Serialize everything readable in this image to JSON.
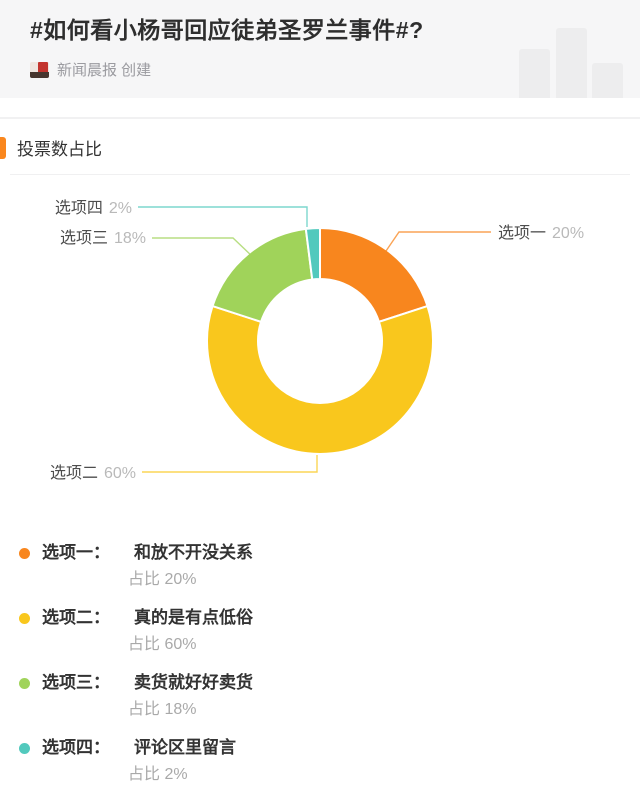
{
  "header": {
    "title": "#如何看小杨哥回应徒弟圣罗兰事件#?",
    "creator": "新闻晨报 创建"
  },
  "icons": {
    "creator_avatar": "newspaper-logo",
    "decorative": "bar-chart-watermark"
  },
  "section": {
    "title": "投票数占比",
    "accent_color": "#FA871E"
  },
  "chart_data": {
    "type": "pie",
    "subtype": "donut",
    "title": "投票数占比",
    "categories": [
      "选项一",
      "选项二",
      "选项三",
      "选项四"
    ],
    "values": [
      20,
      60,
      18,
      2
    ],
    "unit": "%",
    "colors": [
      "#F8861E",
      "#F9C71D",
      "#A0D35A",
      "#52C9BD"
    ],
    "slice_labels": [
      {
        "name": "选项一",
        "pct": "20%"
      },
      {
        "name": "选项二",
        "pct": "60%"
      },
      {
        "name": "选项三",
        "pct": "18%"
      },
      {
        "name": "选项四",
        "pct": "2%"
      }
    ],
    "layout": {
      "start_angle_deg": 0,
      "direction": "clockwise-from-top",
      "inner_radius_ratio": 0.55,
      "slice_gap_color": "#ffffff",
      "legend_position": "below"
    }
  },
  "legend": {
    "ratio_prefix": "占比",
    "items": [
      {
        "name": "选项一：",
        "text": "和放不开没关系",
        "ratio_label": "占比 20%",
        "color": "#F8861E"
      },
      {
        "name": "选项二：",
        "text": "真的是有点低俗",
        "ratio_label": "占比 60%",
        "color": "#F9C71D"
      },
      {
        "name": "选项三：",
        "text": "卖货就好好卖货",
        "ratio_label": "占比 18%",
        "color": "#A0D35A"
      },
      {
        "name": "选项四：",
        "text": "评论区里留言",
        "ratio_label": "占比 2%",
        "color": "#52C9BD"
      }
    ]
  }
}
